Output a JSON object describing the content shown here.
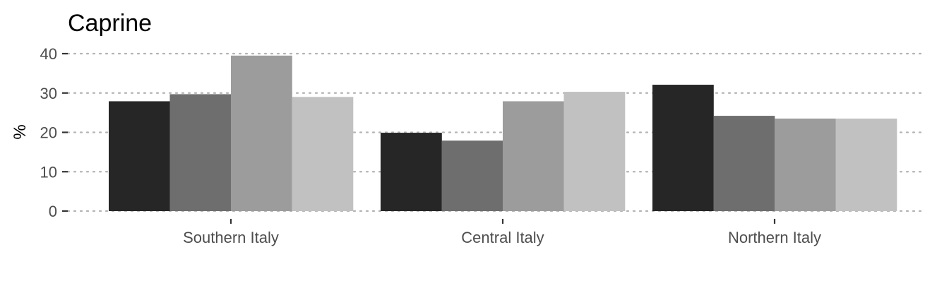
{
  "chart_data": {
    "type": "bar",
    "title": "Caprine",
    "xlabel": "",
    "ylabel": "%",
    "ylim": [
      0,
      40
    ],
    "yticks": [
      0,
      10,
      20,
      30,
      40
    ],
    "grid": true,
    "categories": [
      "Southern Italy",
      "Central Italy",
      "Northern Italy"
    ],
    "series": [
      {
        "color": "#262626",
        "values": [
          27.9,
          19.9,
          32.1
        ]
      },
      {
        "color": "#6e6e6e",
        "values": [
          29.7,
          17.9,
          24.2
        ]
      },
      {
        "color": "#9c9c9c",
        "values": [
          39.5,
          27.9,
          23.5
        ]
      },
      {
        "color": "#c1c1c1",
        "values": [
          29.0,
          30.3,
          23.5
        ]
      }
    ]
  }
}
